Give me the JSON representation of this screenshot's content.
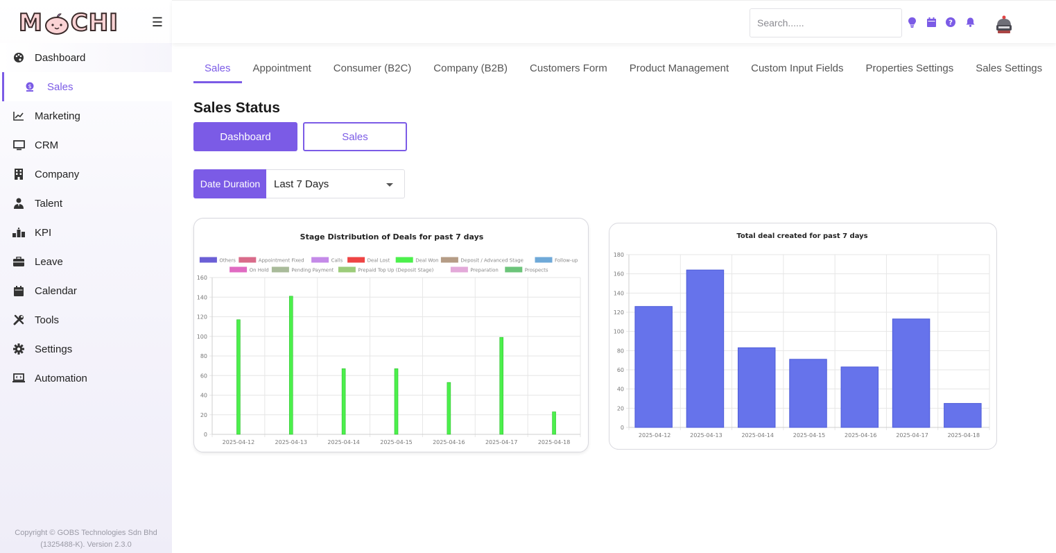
{
  "brand": {
    "logo_text_left": "M",
    "logo_text_right": "CHI"
  },
  "sidebar": {
    "items": [
      {
        "label": "Dashboard",
        "icon": "palette-icon"
      },
      {
        "label": "Sales",
        "icon": "dollar-circle-icon"
      },
      {
        "label": "Marketing",
        "icon": "line-chart-icon"
      },
      {
        "label": "CRM",
        "icon": "monitor-icon"
      },
      {
        "label": "Company",
        "icon": "building-icon"
      },
      {
        "label": "Talent",
        "icon": "user-tie-icon"
      },
      {
        "label": "KPI",
        "icon": "ranking-icon"
      },
      {
        "label": "Leave",
        "icon": "briefcase-icon"
      },
      {
        "label": "Calendar",
        "icon": "calendar-icon"
      },
      {
        "label": "Tools",
        "icon": "tools-icon"
      },
      {
        "label": "Settings",
        "icon": "gear-icon"
      },
      {
        "label": "Automation",
        "icon": "laptop-code-icon"
      }
    ],
    "copyright_line1": "Copyright © GOBS Technologies Sdn Bhd",
    "copyright_line2": "(1325488-K). Version 2.3.0"
  },
  "header": {
    "search_placeholder": "Search......",
    "icons": [
      "lightbulb-icon",
      "calendar-icon",
      "help-icon",
      "bell-icon"
    ],
    "accent": "#7b5be6"
  },
  "tabs": [
    {
      "label": "Sales",
      "active": true
    },
    {
      "label": "Appointment",
      "active": false
    },
    {
      "label": "Consumer (B2C)",
      "active": false
    },
    {
      "label": "Company (B2B)",
      "active": false
    },
    {
      "label": "Customers Form",
      "active": false
    },
    {
      "label": "Product Management",
      "active": false
    },
    {
      "label": "Custom Input Fields",
      "active": false
    },
    {
      "label": "Properties Settings",
      "active": false
    },
    {
      "label": "Sales Settings",
      "active": false
    }
  ],
  "main": {
    "title": "Sales Status",
    "dashboard_button": "Dashboard",
    "sales_button": "Sales",
    "date_duration_label": "Date Duration",
    "date_duration_value": "Last 7 Days"
  },
  "chart_data": [
    {
      "type": "bar",
      "title": "Stage Distribution of Deals for past 7 days",
      "categories": [
        "2025-04-12",
        "2025-04-13",
        "2025-04-14",
        "2025-04-15",
        "2025-04-16",
        "2025-04-17",
        "2025-04-18"
      ],
      "ylim": [
        0,
        160
      ],
      "yticks": [
        0,
        20,
        40,
        60,
        80,
        100,
        120,
        140,
        160
      ],
      "grid": true,
      "legend_position": "top",
      "series": [
        {
          "name": "Others",
          "color": "#6b5fd6",
          "values": [
            0,
            0,
            0,
            0,
            0,
            0,
            0
          ]
        },
        {
          "name": "Appointment Fixed",
          "color": "#d96b8a",
          "values": [
            0,
            0,
            0,
            0,
            0,
            0,
            0
          ]
        },
        {
          "name": "Calls",
          "color": "#c48ae8",
          "values": [
            0,
            0,
            0,
            0,
            0,
            0,
            0
          ]
        },
        {
          "name": "Deal Lost",
          "color": "#ee4444",
          "values": [
            0,
            0,
            0,
            0,
            0,
            0,
            0
          ]
        },
        {
          "name": "Deal Won",
          "color": "#4cf04c",
          "values": [
            117,
            141,
            67,
            67,
            53,
            99,
            23
          ]
        },
        {
          "name": "Deposit / Advanced Stage",
          "color": "#b59c86",
          "values": [
            0,
            0,
            0,
            0,
            0,
            0,
            0
          ]
        },
        {
          "name": "Follow-up",
          "color": "#6fa9d8",
          "values": [
            0,
            0,
            0,
            0,
            0,
            0,
            0
          ]
        },
        {
          "name": "On Hold",
          "color": "#e06bc2",
          "values": [
            0,
            0,
            0,
            0,
            0,
            0,
            0
          ]
        },
        {
          "name": "Pending Payment",
          "color": "#a9bb9a",
          "values": [
            0,
            0,
            0,
            0,
            0,
            0,
            0
          ]
        },
        {
          "name": "Prepaid Top Up (Deposit Stage)",
          "color": "#9ccc7a",
          "values": [
            0,
            0,
            0,
            0,
            0,
            0,
            0
          ]
        },
        {
          "name": "Preparation",
          "color": "#e3a9d9",
          "values": [
            0,
            0,
            0,
            0,
            0,
            0,
            0
          ]
        },
        {
          "name": "Prospects",
          "color": "#6cc47a",
          "values": [
            0,
            0,
            0,
            0,
            0,
            0,
            0
          ]
        }
      ]
    },
    {
      "type": "bar",
      "title": "Total deal created for past 7 days",
      "categories": [
        "2025-04-12",
        "2025-04-13",
        "2025-04-14",
        "2025-04-15",
        "2025-04-16",
        "2025-04-17",
        "2025-04-18"
      ],
      "values": [
        126,
        164,
        83,
        71,
        63,
        113,
        25
      ],
      "color": "#6673eb",
      "ylim": [
        0,
        180
      ],
      "yticks": [
        0,
        20,
        40,
        60,
        80,
        100,
        120,
        140,
        160,
        180
      ],
      "grid": true
    }
  ]
}
